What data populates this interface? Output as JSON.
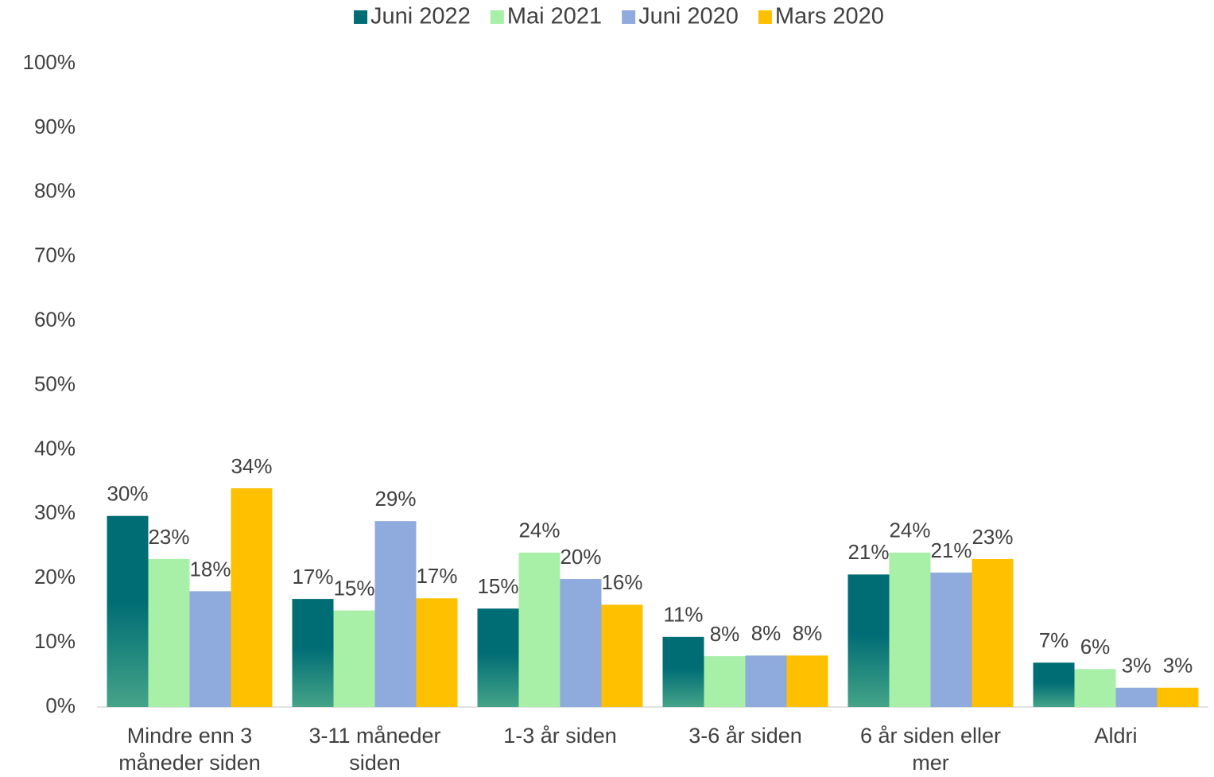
{
  "chart_data": {
    "type": "bar",
    "categories": [
      "Mindre enn 3 måneder siden",
      "3-11 måneder siden",
      "1-3 år siden",
      "3-6 år siden",
      "6 år siden eller mer",
      "Aldri"
    ],
    "series": [
      {
        "name": "Juni 2022",
        "color": "#006d75",
        "values": [
          29.7,
          16.8,
          15.3,
          10.9,
          20.6,
          6.9
        ],
        "value_labels": [
          "30%",
          "17%",
          "15%",
          "11%",
          "21%",
          "7%"
        ]
      },
      {
        "name": "Mai 2021",
        "color": "#a8f0a8",
        "values": [
          23,
          15,
          24,
          7.9,
          24,
          5.9
        ],
        "value_labels": [
          "23%",
          "15%",
          "24%",
          "8%",
          "24%",
          "6%"
        ]
      },
      {
        "name": "Juni 2020",
        "color": "#8faadc",
        "values": [
          18,
          28.9,
          19.9,
          8,
          20.9,
          3
        ],
        "value_labels": [
          "18%",
          "29%",
          "20%",
          "8%",
          "21%",
          "3%"
        ]
      },
      {
        "name": "Mars 2020",
        "color": "#ffc000",
        "values": [
          34,
          16.9,
          15.9,
          8,
          23,
          3
        ],
        "value_labels": [
          "34%",
          "17%",
          "16%",
          "8%",
          "23%",
          "3%"
        ]
      }
    ],
    "ylim": [
      0,
      100
    ],
    "yticks": [
      {
        "value": 0,
        "label": "0%"
      },
      {
        "value": 10,
        "label": "10%"
      },
      {
        "value": 20,
        "label": "20%"
      },
      {
        "value": 30,
        "label": "30%"
      },
      {
        "value": 40,
        "label": "40%"
      },
      {
        "value": 50,
        "label": "50%"
      },
      {
        "value": 60,
        "label": "60%"
      },
      {
        "value": 70,
        "label": "70%"
      },
      {
        "value": 80,
        "label": "80%"
      },
      {
        "value": 90,
        "label": "90%"
      },
      {
        "value": 100,
        "label": "100%"
      }
    ],
    "grid": false,
    "legend": "top"
  }
}
